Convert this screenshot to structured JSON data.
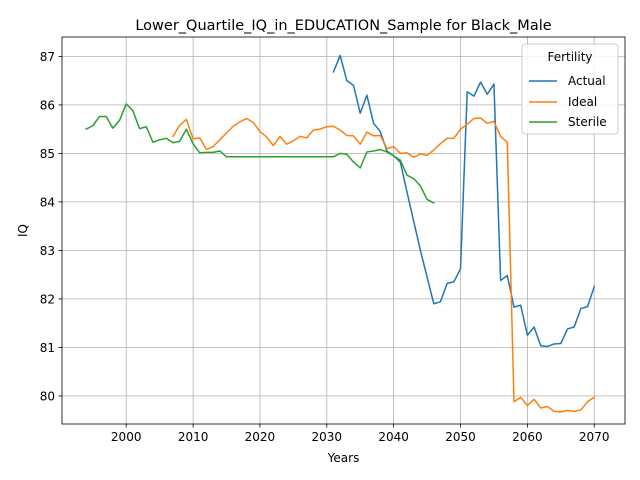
{
  "chart_data": {
    "type": "line",
    "title": "Lower_Quartile_IQ_in_EDUCATION_Sample for Black_Male",
    "xlabel": "Years",
    "ylabel": "IQ",
    "xlim": [
      1990.4,
      2074.6
    ],
    "ylim": [
      79.42,
      87.4
    ],
    "x_ticks": [
      2000,
      2010,
      2020,
      2030,
      2040,
      2050,
      2060,
      2070
    ],
    "y_ticks": [
      80,
      81,
      82,
      83,
      84,
      85,
      86,
      87
    ],
    "grid": true,
    "legend": {
      "title": "Fertility",
      "position": "upper right"
    },
    "series": [
      {
        "name": "Actual",
        "color": "#1f77b4",
        "points": [
          [
            2031,
            86.68
          ],
          [
            2032,
            87.02
          ],
          [
            2033,
            86.5
          ],
          [
            2034,
            86.4
          ],
          [
            2035,
            85.83
          ],
          [
            2036,
            86.2
          ],
          [
            2037,
            85.62
          ],
          [
            2038,
            85.45
          ],
          [
            2039,
            85.05
          ],
          [
            2040,
            84.95
          ],
          [
            2041,
            84.82
          ],
          [
            2042,
            84.2
          ],
          [
            2043,
            83.6
          ],
          [
            2044,
            83.0
          ],
          [
            2045,
            82.45
          ],
          [
            2046,
            81.9
          ],
          [
            2047,
            81.94
          ],
          [
            2048,
            82.32
          ],
          [
            2049,
            82.35
          ],
          [
            2050,
            82.62
          ],
          [
            2051,
            86.27
          ],
          [
            2052,
            86.18
          ],
          [
            2053,
            86.47
          ],
          [
            2054,
            86.22
          ],
          [
            2055,
            86.43
          ],
          [
            2056,
            82.38
          ],
          [
            2057,
            82.48
          ],
          [
            2058,
            81.83
          ],
          [
            2059,
            81.87
          ],
          [
            2060,
            81.25
          ],
          [
            2061,
            81.42
          ],
          [
            2062,
            81.03
          ],
          [
            2063,
            81.02
          ],
          [
            2064,
            81.07
          ],
          [
            2065,
            81.08
          ],
          [
            2066,
            81.38
          ],
          [
            2067,
            81.42
          ],
          [
            2068,
            81.8
          ],
          [
            2069,
            81.84
          ],
          [
            2070,
            82.25
          ]
        ]
      },
      {
        "name": "Ideal",
        "color": "#ff7f0e",
        "points": [
          [
            2007,
            85.35
          ],
          [
            2008,
            85.58
          ],
          [
            2009,
            85.7
          ],
          [
            2010,
            85.3
          ],
          [
            2011,
            85.32
          ],
          [
            2012,
            85.08
          ],
          [
            2013,
            85.14
          ],
          [
            2014,
            85.28
          ],
          [
            2015,
            85.42
          ],
          [
            2016,
            85.56
          ],
          [
            2017,
            85.65
          ],
          [
            2018,
            85.72
          ],
          [
            2019,
            85.64
          ],
          [
            2020,
            85.45
          ],
          [
            2021,
            85.34
          ],
          [
            2022,
            85.16
          ],
          [
            2023,
            85.35
          ],
          [
            2024,
            85.19
          ],
          [
            2025,
            85.26
          ],
          [
            2026,
            85.35
          ],
          [
            2027,
            85.32
          ],
          [
            2028,
            85.48
          ],
          [
            2029,
            85.5
          ],
          [
            2030,
            85.55
          ],
          [
            2031,
            85.56
          ],
          [
            2032,
            85.48
          ],
          [
            2033,
            85.37
          ],
          [
            2034,
            85.36
          ],
          [
            2035,
            85.19
          ],
          [
            2036,
            85.44
          ],
          [
            2037,
            85.36
          ],
          [
            2038,
            85.37
          ],
          [
            2039,
            85.1
          ],
          [
            2040,
            85.14
          ],
          [
            2041,
            85.0
          ],
          [
            2042,
            85.01
          ],
          [
            2043,
            84.92
          ],
          [
            2044,
            84.99
          ],
          [
            2045,
            84.96
          ],
          [
            2046,
            85.07
          ],
          [
            2047,
            85.2
          ],
          [
            2048,
            85.31
          ],
          [
            2049,
            85.31
          ],
          [
            2050,
            85.5
          ],
          [
            2051,
            85.6
          ],
          [
            2052,
            85.72
          ],
          [
            2053,
            85.73
          ],
          [
            2054,
            85.62
          ],
          [
            2055,
            85.66
          ],
          [
            2056,
            85.35
          ],
          [
            2057,
            85.23
          ],
          [
            2058,
            79.88
          ],
          [
            2059,
            79.97
          ],
          [
            2060,
            79.8
          ],
          [
            2061,
            79.93
          ],
          [
            2062,
            79.75
          ],
          [
            2063,
            79.78
          ],
          [
            2064,
            79.68
          ],
          [
            2065,
            79.67
          ],
          [
            2066,
            79.7
          ],
          [
            2067,
            79.68
          ],
          [
            2068,
            79.71
          ],
          [
            2069,
            79.88
          ],
          [
            2070,
            79.97
          ]
        ]
      },
      {
        "name": "Sterile",
        "color": "#2ca02c",
        "points": [
          [
            1994,
            85.5
          ],
          [
            1995,
            85.57
          ],
          [
            1996,
            85.76
          ],
          [
            1997,
            85.76
          ],
          [
            1998,
            85.52
          ],
          [
            1999,
            85.68
          ],
          [
            2000,
            86.02
          ],
          [
            2001,
            85.88
          ],
          [
            2002,
            85.51
          ],
          [
            2003,
            85.55
          ],
          [
            2004,
            85.23
          ],
          [
            2005,
            85.28
          ],
          [
            2006,
            85.31
          ],
          [
            2007,
            85.22
          ],
          [
            2008,
            85.25
          ],
          [
            2009,
            85.5
          ],
          [
            2010,
            85.2
          ],
          [
            2011,
            85.01
          ],
          [
            2012,
            85.02
          ],
          [
            2013,
            85.02
          ],
          [
            2014,
            85.05
          ],
          [
            2015,
            84.93
          ],
          [
            2016,
            84.93
          ],
          [
            2017,
            84.93
          ],
          [
            2018,
            84.93
          ],
          [
            2019,
            84.93
          ],
          [
            2020,
            84.93
          ],
          [
            2021,
            84.93
          ],
          [
            2022,
            84.93
          ],
          [
            2023,
            84.93
          ],
          [
            2024,
            84.93
          ],
          [
            2025,
            84.93
          ],
          [
            2026,
            84.93
          ],
          [
            2027,
            84.93
          ],
          [
            2028,
            84.93
          ],
          [
            2029,
            84.93
          ],
          [
            2030,
            84.93
          ],
          [
            2031,
            84.93
          ],
          [
            2032,
            85.0
          ],
          [
            2033,
            84.98
          ],
          [
            2034,
            84.82
          ],
          [
            2035,
            84.7
          ],
          [
            2036,
            85.03
          ],
          [
            2037,
            85.05
          ],
          [
            2038,
            85.08
          ],
          [
            2039,
            85.03
          ],
          [
            2040,
            84.95
          ],
          [
            2041,
            84.86
          ],
          [
            2042,
            84.55
          ],
          [
            2043,
            84.48
          ],
          [
            2044,
            84.33
          ],
          [
            2045,
            84.05
          ],
          [
            2046,
            83.98
          ]
        ]
      }
    ]
  }
}
